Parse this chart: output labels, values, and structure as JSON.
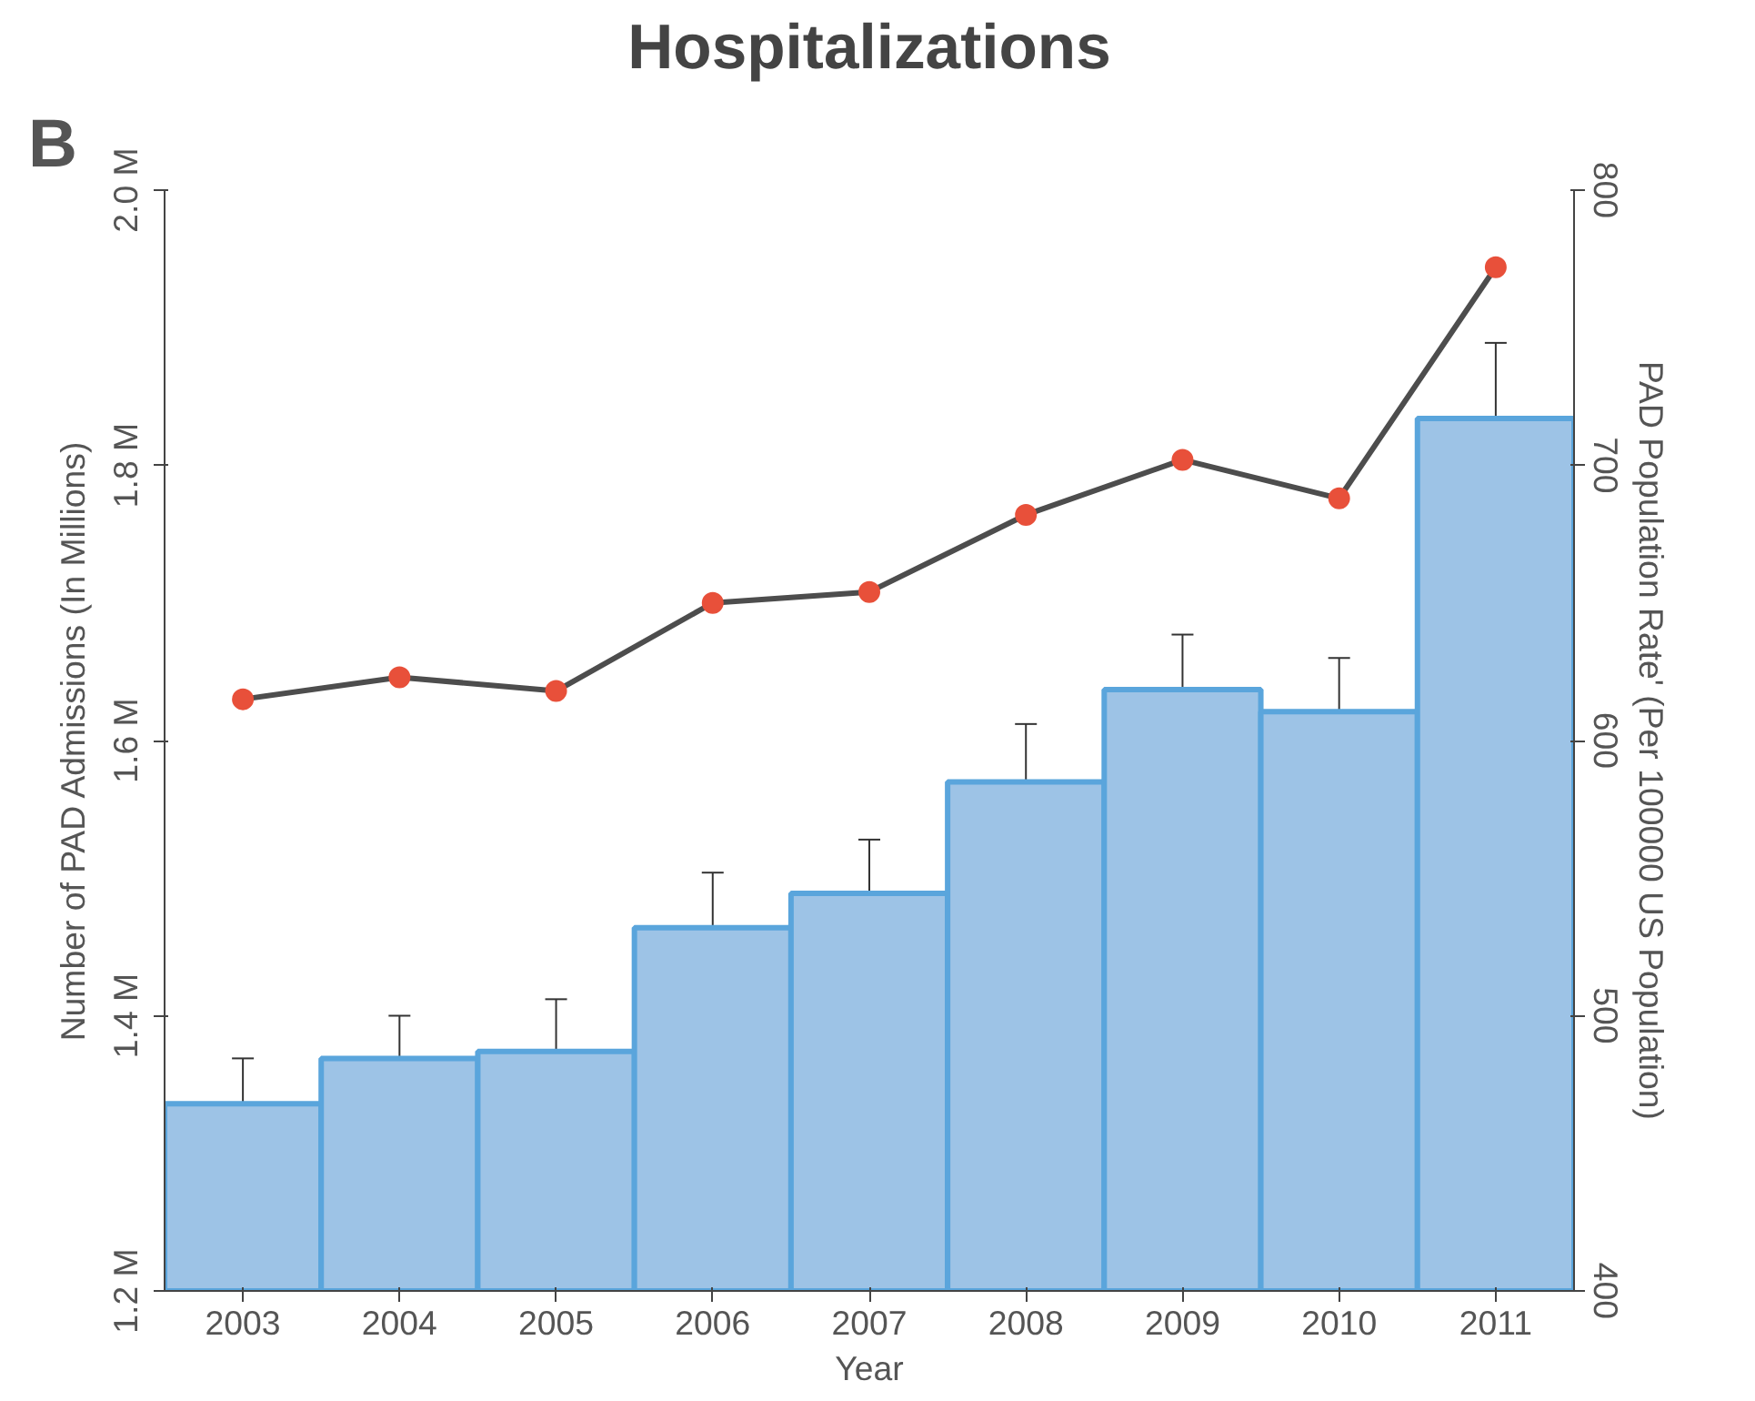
{
  "chart_data": {
    "type": "bar",
    "title": "Hospitalizations",
    "categories": [
      "2003",
      "2004",
      "2005",
      "2006",
      "2007",
      "2008",
      "2009",
      "2010",
      "2011"
    ],
    "xlabel": "Year",
    "ylabel": "Number of PAD Admissions (In Millions)",
    "y2label": "PAD Population Rate' (Per 100000 US Population)",
    "series": [
      {
        "type": "bar",
        "color": "#9dc3e6",
        "values": [
          1.336,
          1.369,
          1.374,
          1.464,
          1.489,
          1.57,
          1.637,
          1.621,
          1.834
        ],
        "errors": [
          [
            1.336,
            1.369
          ],
          [
            1.369,
            1.4
          ],
          [
            1.374,
            1.412
          ],
          [
            1.464,
            1.504
          ],
          [
            1.489,
            1.528
          ],
          [
            1.57,
            1.612
          ],
          [
            1.637,
            1.677
          ],
          [
            1.621,
            1.66
          ],
          [
            1.834,
            1.889
          ]
        ]
      },
      {
        "type": "line",
        "axis": "y2",
        "color": "#4d4d4d",
        "marker": "circle",
        "values": [
          615,
          623,
          618,
          650,
          654,
          682,
          702,
          688,
          772
        ]
      }
    ],
    "ylim": [
      1.2,
      2.0
    ],
    "yticks": [
      {
        "value": 1.2,
        "label": "1.2 M"
      },
      {
        "value": 1.4,
        "label": "1.4 M"
      },
      {
        "value": 1.6,
        "label": "1.6 M"
      },
      {
        "value": 1.8,
        "label": "1.8 M"
      },
      {
        "value": 2.0,
        "label": "2.0 M"
      }
    ],
    "y2lim": [
      400,
      800
    ],
    "y2ticks": [
      400,
      500,
      600,
      700,
      800
    ],
    "grid": false,
    "annotations": [
      "B"
    ]
  }
}
